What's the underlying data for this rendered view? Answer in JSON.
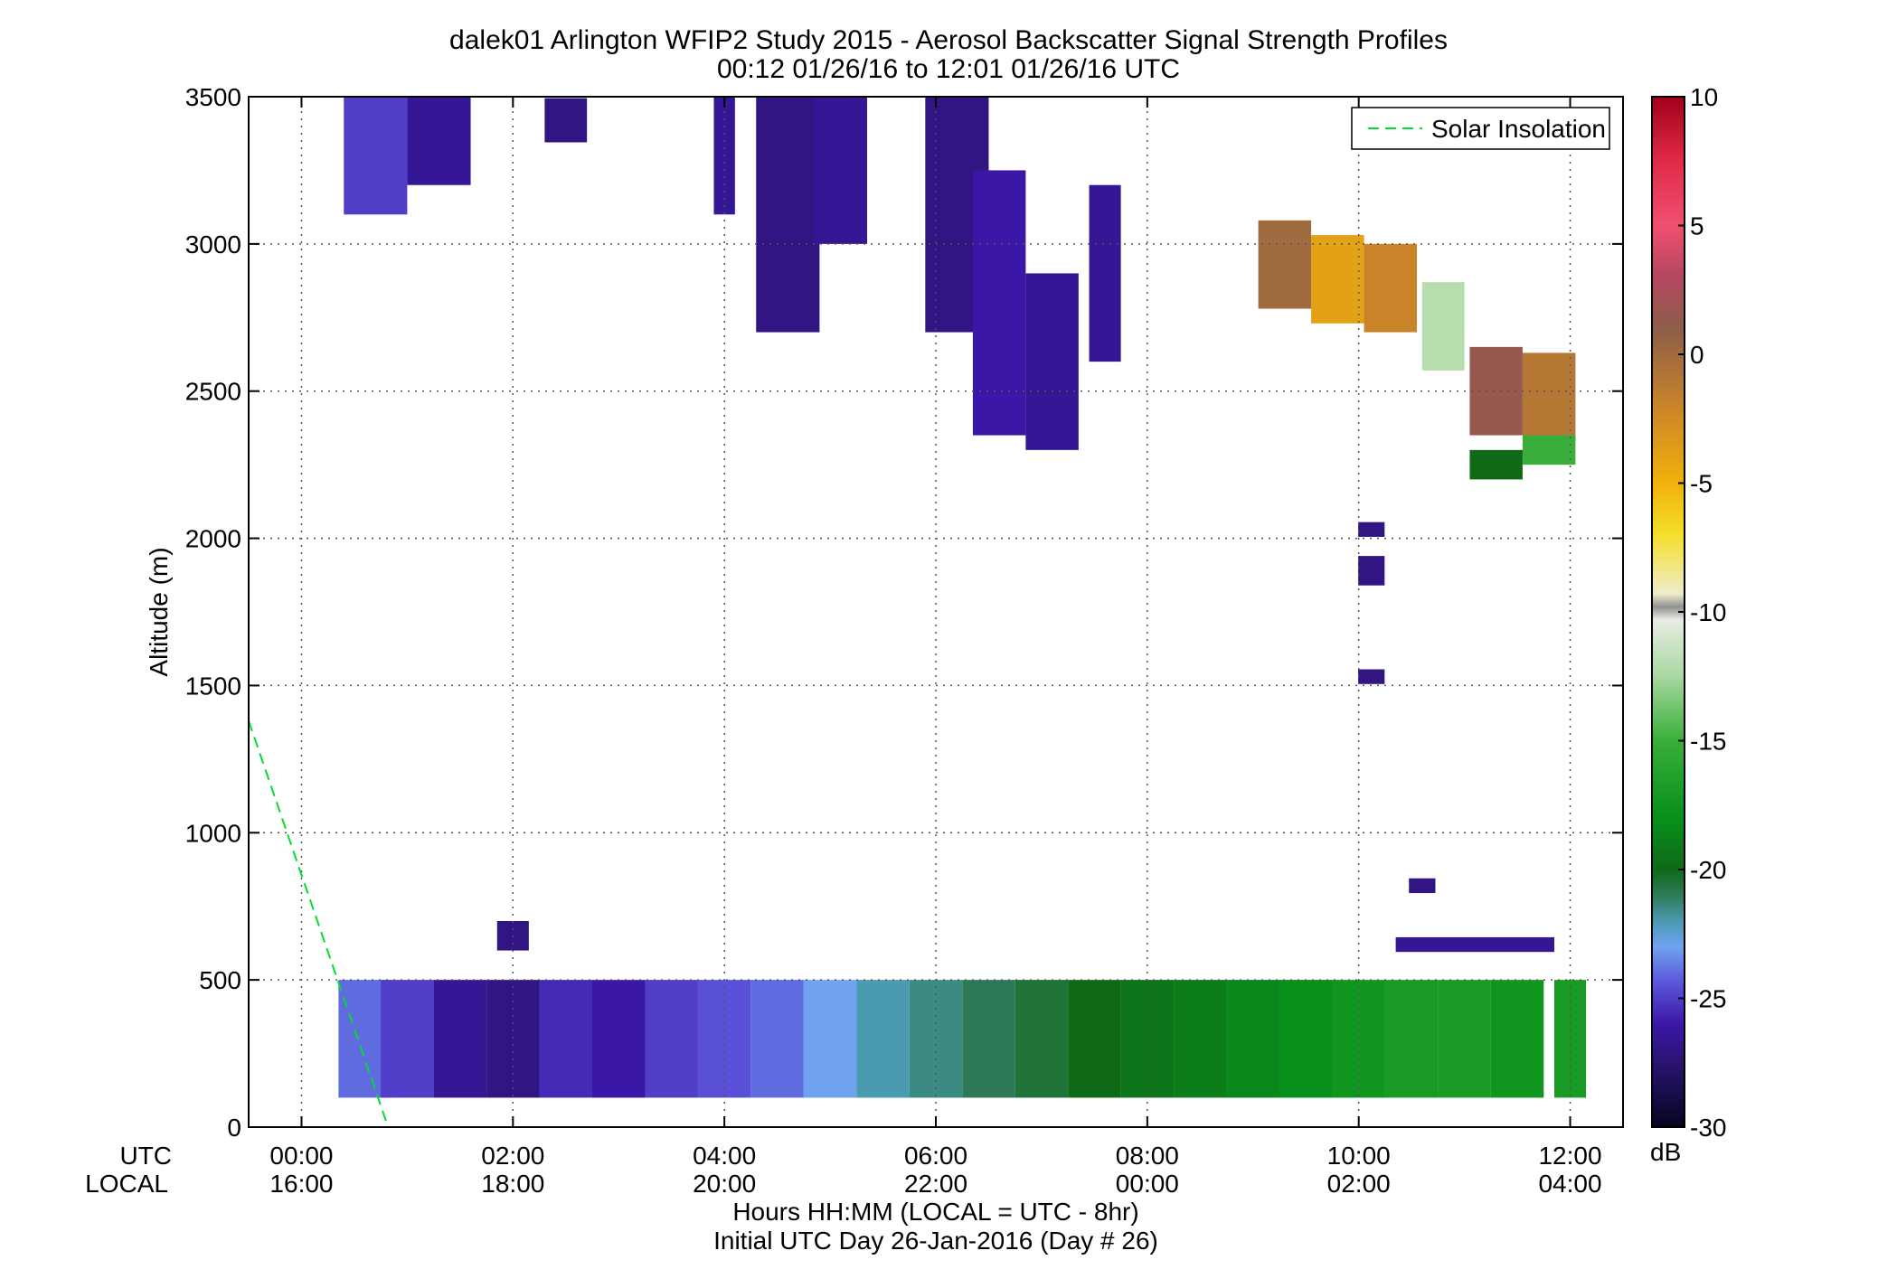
{
  "chart_data": {
    "type": "heatmap",
    "title": "dalek01 Arlington WFIP2 Study 2015 - Aerosol Backscatter Signal Strength Profiles",
    "subtitle": "00:12 01/26/16 to 12:01 01/26/16  UTC",
    "ylabel": "Altitude (m)",
    "xlabel": "Hours HH:MM  (LOCAL = UTC - 8hr)",
    "xlabel2": "Initial UTC Day 26-Jan-2016 (Day # 26)",
    "x_row_labels": [
      "UTC",
      "LOCAL"
    ],
    "xlim": [
      -0.5,
      12.5
    ],
    "ylim": [
      0,
      3500
    ],
    "x_ticks": [
      {
        "value": 0,
        "utc": "00:00",
        "local": "16:00"
      },
      {
        "value": 2,
        "utc": "02:00",
        "local": "18:00"
      },
      {
        "value": 4,
        "utc": "04:00",
        "local": "20:00"
      },
      {
        "value": 6,
        "utc": "06:00",
        "local": "22:00"
      },
      {
        "value": 8,
        "utc": "08:00",
        "local": "00:00"
      },
      {
        "value": 10,
        "utc": "10:00",
        "local": "02:00"
      },
      {
        "value": 12,
        "utc": "12:00",
        "local": "04:00"
      }
    ],
    "y_ticks": [
      0,
      500,
      1000,
      1500,
      2000,
      2500,
      3000,
      3500
    ],
    "grid": true,
    "legend": {
      "label": "Solar Insolation",
      "placement": "top-right",
      "color": "#00dd33",
      "style": "dashed"
    },
    "solar_insolation": {
      "x": [
        -0.5,
        0.8
      ],
      "y": [
        1380,
        20
      ]
    },
    "colorbar": {
      "label": "dB",
      "range": [
        -30,
        10
      ],
      "ticks": [
        10,
        5,
        0,
        -5,
        -10,
        -15,
        -20,
        -25,
        -30
      ],
      "stops": [
        {
          "v": -30,
          "c": "#050520"
        },
        {
          "v": -27.5,
          "c": "#2a1470"
        },
        {
          "v": -26,
          "c": "#3b17a8"
        },
        {
          "v": -24.5,
          "c": "#5a50d8"
        },
        {
          "v": -23,
          "c": "#6fa2f0"
        },
        {
          "v": -22,
          "c": "#4a9ab0"
        },
        {
          "v": -21,
          "c": "#2e7a58"
        },
        {
          "v": -20,
          "c": "#0f6a18"
        },
        {
          "v": -18,
          "c": "#07901a"
        },
        {
          "v": -15,
          "c": "#3aae3a"
        },
        {
          "v": -12.5,
          "c": "#a8d8a0"
        },
        {
          "v": -10.3,
          "c": "#e8ece4"
        },
        {
          "v": -9.8,
          "c": "#909090"
        },
        {
          "v": -9.3,
          "c": "#efeccc"
        },
        {
          "v": -7,
          "c": "#f4df2a"
        },
        {
          "v": -5,
          "c": "#f0b10c"
        },
        {
          "v": -2,
          "c": "#c9842a"
        },
        {
          "v": 1,
          "c": "#8c5e48"
        },
        {
          "v": 3,
          "c": "#b44760"
        },
        {
          "v": 5,
          "c": "#f05070"
        },
        {
          "v": 7.5,
          "c": "#e02a48"
        },
        {
          "v": 10,
          "c": "#a0001a"
        }
      ]
    },
    "grid_def": {
      "x_start": 0.2,
      "dx": 0.25,
      "y_start": 100,
      "dy": 50,
      "_note": "cells listed as [x_center_hours, y_center_m, x_span_hours, y_span_m, value_dB]"
    },
    "cells": [
      [
        0.6,
        300,
        0.5,
        400,
        -24.0
      ],
      [
        1.0,
        300,
        0.5,
        400,
        -25.0
      ],
      [
        1.5,
        300,
        0.5,
        400,
        -26.5
      ],
      [
        2.0,
        300,
        0.5,
        400,
        -27.0
      ],
      [
        2.5,
        300,
        0.5,
        400,
        -25.5
      ],
      [
        3.0,
        300,
        0.5,
        400,
        -26.0
      ],
      [
        3.5,
        300,
        0.5,
        400,
        -25.0
      ],
      [
        4.0,
        300,
        0.5,
        400,
        -24.5
      ],
      [
        4.5,
        300,
        0.5,
        400,
        -24.0
      ],
      [
        5.0,
        300,
        0.5,
        400,
        -23.0
      ],
      [
        5.5,
        300,
        0.5,
        400,
        -22.0
      ],
      [
        6.0,
        300,
        0.5,
        400,
        -21.5
      ],
      [
        6.5,
        300,
        0.5,
        400,
        -21.0
      ],
      [
        7.0,
        300,
        0.5,
        400,
        -20.5
      ],
      [
        7.5,
        300,
        0.5,
        400,
        -20.0
      ],
      [
        8.0,
        300,
        0.5,
        400,
        -19.5
      ],
      [
        8.5,
        300,
        0.5,
        400,
        -19.0
      ],
      [
        9.0,
        300,
        0.5,
        400,
        -18.5
      ],
      [
        9.5,
        300,
        0.5,
        400,
        -18.0
      ],
      [
        10.0,
        300,
        0.5,
        400,
        -17.5
      ],
      [
        10.5,
        300,
        0.5,
        400,
        -17.0
      ],
      [
        11.0,
        300,
        0.5,
        400,
        -17.0
      ],
      [
        11.5,
        300,
        0.5,
        400,
        -17.5
      ],
      [
        12.0,
        300,
        0.3,
        400,
        -17.0
      ],
      [
        2.0,
        650,
        0.3,
        100,
        -27.0
      ],
      [
        10.6,
        820,
        0.25,
        50,
        -27.0
      ],
      [
        11.1,
        620,
        1.5,
        50,
        -26.5
      ],
      [
        10.12,
        2030,
        0.25,
        50,
        -27.0
      ],
      [
        10.12,
        1890,
        0.25,
        100,
        -27.0
      ],
      [
        10.12,
        1530,
        0.25,
        50,
        -27.0
      ],
      [
        0.7,
        3300,
        0.6,
        400,
        -25.0
      ],
      [
        1.3,
        3350,
        0.6,
        300,
        -26.5
      ],
      [
        2.5,
        3420,
        0.4,
        150,
        -27.0
      ],
      [
        4.0,
        3300,
        0.2,
        400,
        -26.5
      ],
      [
        4.6,
        3100,
        0.6,
        800,
        -27.0
      ],
      [
        5.1,
        3250,
        0.5,
        500,
        -26.5
      ],
      [
        6.2,
        3100,
        0.6,
        800,
        -27.0
      ],
      [
        6.6,
        2800,
        0.5,
        900,
        -26.0
      ],
      [
        7.1,
        2600,
        0.5,
        600,
        -26.5
      ],
      [
        7.6,
        2900,
        0.3,
        600,
        -26.5
      ],
      [
        9.3,
        2930,
        0.5,
        300,
        0.0
      ],
      [
        9.8,
        2880,
        0.5,
        300,
        -4.0
      ],
      [
        10.3,
        2850,
        0.5,
        300,
        -2.0
      ],
      [
        10.8,
        2720,
        0.4,
        300,
        -12.0
      ],
      [
        11.3,
        2500,
        0.5,
        300,
        1.5
      ],
      [
        11.8,
        2480,
        0.5,
        300,
        -1.0
      ],
      [
        11.3,
        2250,
        0.5,
        100,
        -20.0
      ],
      [
        11.8,
        2300,
        0.5,
        100,
        -15.0
      ]
    ]
  }
}
